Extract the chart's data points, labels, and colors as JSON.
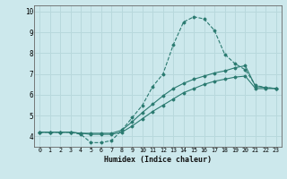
{
  "xlabel": "Humidex (Indice chaleur)",
  "ylabel": "",
  "background_color": "#cce8ec",
  "grid_color": "#b8d8dc",
  "line_color": "#2a7a70",
  "xlim": [
    -0.5,
    23.5
  ],
  "ylim": [
    3.5,
    10.3
  ],
  "yticks": [
    4,
    5,
    6,
    7,
    8,
    9,
    10
  ],
  "xticks": [
    0,
    1,
    2,
    3,
    4,
    5,
    6,
    7,
    8,
    9,
    10,
    11,
    12,
    13,
    14,
    15,
    16,
    17,
    18,
    19,
    20,
    21,
    22,
    23
  ],
  "series1": [
    4.2,
    4.2,
    4.2,
    4.2,
    4.1,
    3.7,
    3.7,
    3.8,
    4.3,
    4.9,
    5.5,
    6.4,
    7.0,
    8.4,
    9.5,
    9.75,
    9.65,
    9.1,
    7.95,
    7.5,
    7.2,
    6.45,
    6.35,
    6.3
  ],
  "series2": [
    4.2,
    4.2,
    4.2,
    4.2,
    4.15,
    4.15,
    4.15,
    4.15,
    4.3,
    4.7,
    5.15,
    5.55,
    5.95,
    6.3,
    6.55,
    6.75,
    6.9,
    7.05,
    7.15,
    7.3,
    7.4,
    6.4,
    6.35,
    6.3
  ],
  "series3": [
    4.2,
    4.2,
    4.2,
    4.2,
    4.15,
    4.1,
    4.1,
    4.1,
    4.2,
    4.5,
    4.85,
    5.2,
    5.5,
    5.8,
    6.1,
    6.3,
    6.5,
    6.65,
    6.75,
    6.85,
    6.9,
    6.3,
    6.3,
    6.3
  ]
}
